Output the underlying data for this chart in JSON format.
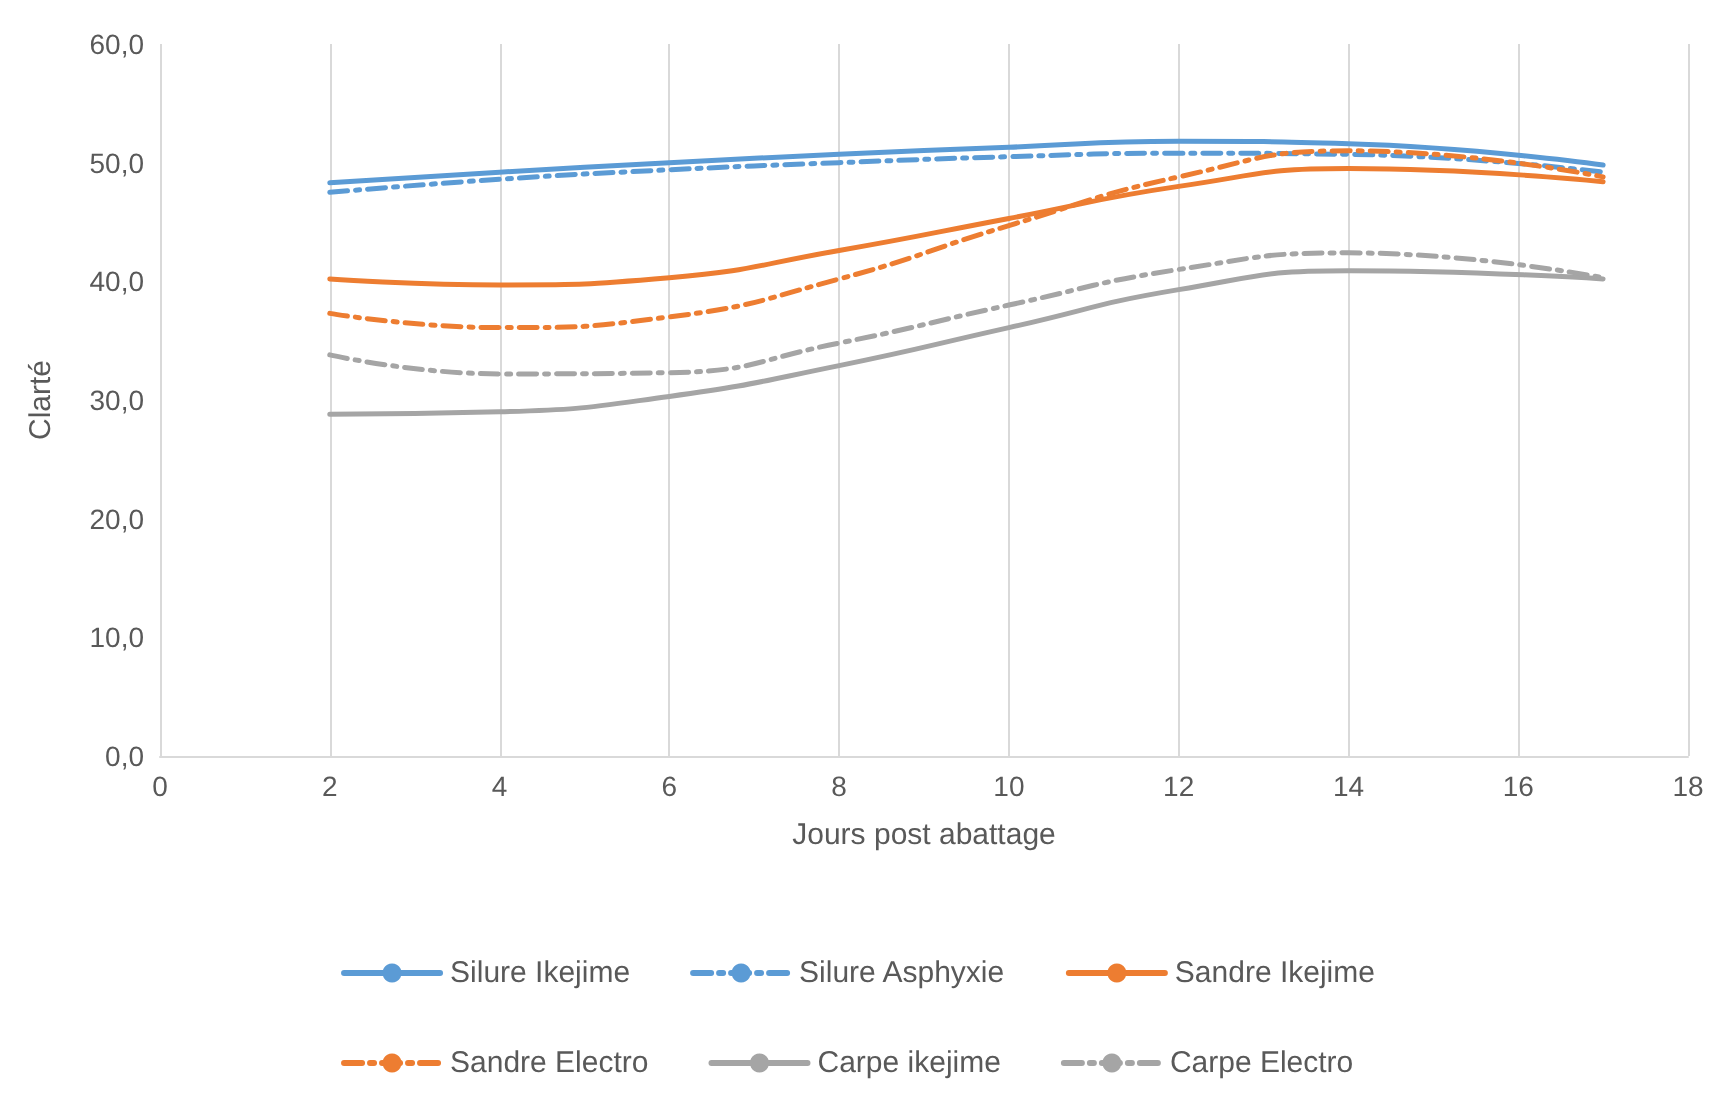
{
  "chart_data": {
    "type": "line",
    "xlabel": "Jours post abattage",
    "ylabel": "Clarté",
    "x": [
      2,
      4,
      6,
      8,
      10,
      12,
      14,
      17
    ],
    "series": [
      {
        "name": "Silure Ikejime",
        "color": "#5b9bd5",
        "line_style": "solid",
        "values": [
          48.3,
          49.2,
          50.0,
          50.7,
          51.3,
          51.8,
          51.6,
          49.8
        ]
      },
      {
        "name": "Silure Asphyxie",
        "color": "#5b9bd5",
        "line_style": "dashed",
        "values": [
          47.5,
          48.6,
          49.4,
          50.0,
          50.5,
          50.8,
          50.7,
          49.2
        ]
      },
      {
        "name": "Sandre Ikejime",
        "color": "#ed7d31",
        "line_style": "solid",
        "values": [
          40.2,
          39.7,
          40.3,
          42.6,
          45.3,
          48.0,
          49.5,
          48.4
        ]
      },
      {
        "name": "Sandre Electro",
        "color": "#ed7d31",
        "line_style": "dashed",
        "values": [
          37.3,
          36.1,
          37.0,
          40.2,
          44.7,
          48.8,
          51.0,
          48.8
        ]
      },
      {
        "name": "Carpe ikejime",
        "color": "#a5a5a5",
        "line_style": "solid",
        "values": [
          28.8,
          29.0,
          30.3,
          32.9,
          36.1,
          39.3,
          40.9,
          40.2
        ]
      },
      {
        "name": "Carpe Electro",
        "color": "#a5a5a5",
        "line_style": "dashed",
        "values": [
          33.8,
          32.2,
          32.3,
          34.8,
          38.0,
          41.0,
          42.4,
          40.3
        ]
      }
    ],
    "xlim": [
      0,
      18
    ],
    "xticks": [
      0,
      2,
      4,
      6,
      8,
      10,
      12,
      14,
      16,
      18
    ],
    "ylim": [
      0,
      60
    ],
    "yticks": [
      {
        "value": 0,
        "label": "0,0"
      },
      {
        "value": 10,
        "label": "10,0"
      },
      {
        "value": 20,
        "label": "20,0"
      },
      {
        "value": 30,
        "label": "30,0"
      },
      {
        "value": 40,
        "label": "40,0"
      },
      {
        "value": 50,
        "label": "50,0"
      },
      {
        "value": 60,
        "label": "60,0"
      }
    ],
    "grid": "x",
    "legend": "bottom",
    "marker": "none"
  }
}
